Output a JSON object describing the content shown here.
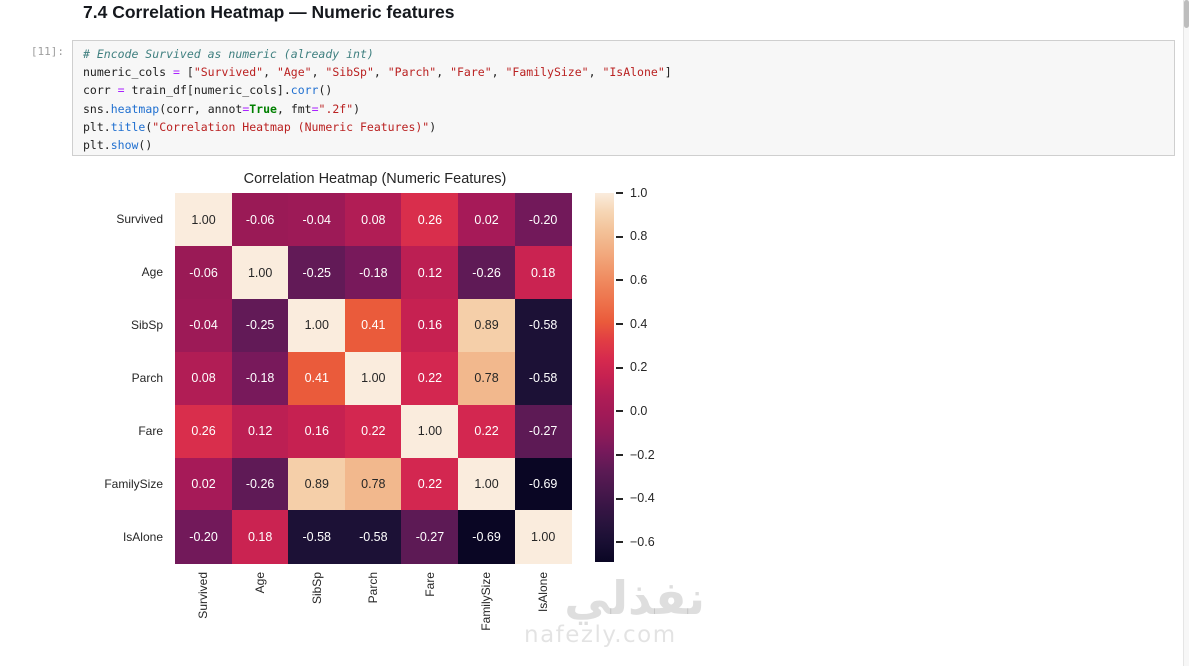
{
  "heading": {
    "text": "7.4 Correlation Heatmap — Numeric features"
  },
  "cell": {
    "prompt": "[11]:",
    "code_lines": [
      [
        [
          "comment",
          "# Encode Survived as numeric (already int)"
        ]
      ],
      [
        [
          "plain",
          "numeric_cols "
        ],
        [
          "op",
          "="
        ],
        [
          "plain",
          " "
        ],
        [
          "punct",
          "["
        ],
        [
          "str",
          "\"Survived\""
        ],
        [
          "punct",
          ", "
        ],
        [
          "str",
          "\"Age\""
        ],
        [
          "punct",
          ", "
        ],
        [
          "str",
          "\"SibSp\""
        ],
        [
          "punct",
          ", "
        ],
        [
          "str",
          "\"Parch\""
        ],
        [
          "punct",
          ", "
        ],
        [
          "str",
          "\"Fare\""
        ],
        [
          "punct",
          ", "
        ],
        [
          "str",
          "\"FamilySize\""
        ],
        [
          "punct",
          ", "
        ],
        [
          "str",
          "\"IsAlone\""
        ],
        [
          "punct",
          "]"
        ]
      ],
      [
        [
          "plain",
          "corr "
        ],
        [
          "op",
          "="
        ],
        [
          "plain",
          " train_df"
        ],
        [
          "punct",
          "["
        ],
        [
          "plain",
          "numeric_cols"
        ],
        [
          "punct",
          "]."
        ],
        [
          "func",
          "corr"
        ],
        [
          "punct",
          "()"
        ]
      ],
      [
        [
          "plain",
          "sns"
        ],
        [
          "punct",
          "."
        ],
        [
          "func",
          "heatmap"
        ],
        [
          "punct",
          "("
        ],
        [
          "plain",
          "corr"
        ],
        [
          "punct",
          ", "
        ],
        [
          "plain",
          "annot"
        ],
        [
          "op",
          "="
        ],
        [
          "kw",
          "True"
        ],
        [
          "punct",
          ", "
        ],
        [
          "plain",
          "fmt"
        ],
        [
          "op",
          "="
        ],
        [
          "str",
          "\".2f\""
        ],
        [
          "punct",
          ")"
        ]
      ],
      [
        [
          "plain",
          "plt"
        ],
        [
          "punct",
          "."
        ],
        [
          "func",
          "title"
        ],
        [
          "punct",
          "("
        ],
        [
          "str",
          "\"Correlation Heatmap (Numeric Features)\""
        ],
        [
          "punct",
          ")"
        ]
      ],
      [
        [
          "plain",
          "plt"
        ],
        [
          "punct",
          "."
        ],
        [
          "func",
          "show"
        ],
        [
          "punct",
          "()"
        ]
      ]
    ]
  },
  "figure": {
    "title": "Correlation Heatmap (Numeric Features)",
    "annot_dark_color": "#262626",
    "annot_light_color": "#ffffff",
    "colormap_stops": [
      [
        -0.69,
        "#0a0624"
      ],
      [
        -0.58,
        "#1c1136"
      ],
      [
        -0.42,
        "#3b1647"
      ],
      [
        -0.26,
        "#5f1a56"
      ],
      [
        -0.18,
        "#78195b"
      ],
      [
        -0.06,
        "#9a1a56"
      ],
      [
        0.02,
        "#a61a58"
      ],
      [
        0.08,
        "#b11d55"
      ],
      [
        0.16,
        "#c62151"
      ],
      [
        0.22,
        "#d32750"
      ],
      [
        0.3,
        "#de3447"
      ],
      [
        0.41,
        "#ea5b3b"
      ],
      [
        0.6,
        "#f08a5e"
      ],
      [
        0.78,
        "#f2b88d"
      ],
      [
        0.89,
        "#f5cfa9"
      ],
      [
        1.0,
        "#faecdd"
      ]
    ],
    "colorbar_ticks": [
      {
        "value": 1.0,
        "label": "1.0"
      },
      {
        "value": 0.8,
        "label": "0.8"
      },
      {
        "value": 0.6,
        "label": "0.6"
      },
      {
        "value": 0.4,
        "label": "0.4"
      },
      {
        "value": 0.2,
        "label": "0.2"
      },
      {
        "value": 0.0,
        "label": "0.0"
      },
      {
        "value": -0.2,
        "label": "−0.2"
      },
      {
        "value": -0.4,
        "label": "−0.4"
      },
      {
        "value": -0.6,
        "label": "−0.6"
      }
    ]
  },
  "watermark": {
    "logo": "نفذلي",
    "domain": "nafezly.com"
  },
  "chart_data": {
    "type": "heatmap",
    "title": "Correlation Heatmap (Numeric Features)",
    "categories": [
      "Survived",
      "Age",
      "SibSp",
      "Parch",
      "Fare",
      "FamilySize",
      "IsAlone"
    ],
    "matrix": [
      [
        1.0,
        -0.06,
        -0.04,
        0.08,
        0.26,
        0.02,
        -0.2
      ],
      [
        -0.06,
        1.0,
        -0.25,
        -0.18,
        0.12,
        -0.26,
        0.18
      ],
      [
        -0.04,
        -0.25,
        1.0,
        0.41,
        0.16,
        0.89,
        -0.58
      ],
      [
        0.08,
        -0.18,
        0.41,
        1.0,
        0.22,
        0.78,
        -0.58
      ],
      [
        0.26,
        0.12,
        0.16,
        0.22,
        1.0,
        0.22,
        -0.27
      ],
      [
        0.02,
        -0.26,
        0.89,
        0.78,
        0.22,
        1.0,
        -0.69
      ],
      [
        -0.2,
        0.18,
        -0.58,
        -0.58,
        -0.27,
        -0.69,
        1.0
      ]
    ],
    "value_format": ".2f",
    "colormap": "rocket",
    "colorbar_range": [
      -0.69,
      1.0
    ],
    "colorbar_tick_values": [
      1.0,
      0.8,
      0.6,
      0.4,
      0.2,
      0.0,
      -0.2,
      -0.4,
      -0.6
    ],
    "legend_position": "right",
    "grid": false
  }
}
